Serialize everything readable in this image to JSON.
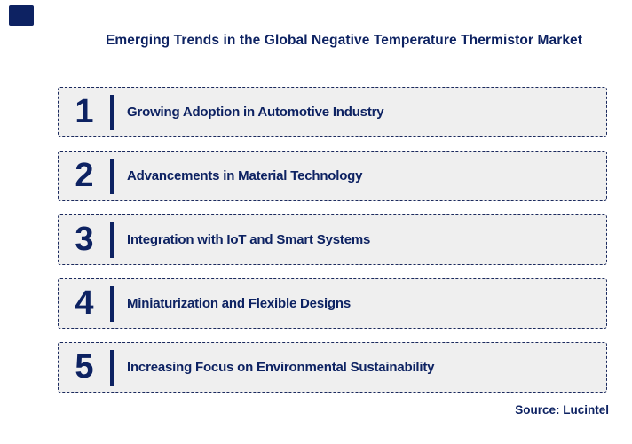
{
  "page": {
    "title": "Emerging Trends in the Global Negative Temperature Thermistor Market",
    "source": "Source: Lucintel"
  },
  "colors": {
    "navy": "#0d2262",
    "box_fill": "#efefef",
    "box_border": "#1b2a5e",
    "background": "#ffffff"
  },
  "logo": {
    "name": "lucintel-corner-mark"
  },
  "trends": [
    {
      "number": "1",
      "label": "Growing Adoption in Automotive Industry"
    },
    {
      "number": "2",
      "label": "Advancements in Material Technology"
    },
    {
      "number": "3",
      "label": "Integration with IoT and Smart Systems"
    },
    {
      "number": "4",
      "label": "Miniaturization and Flexible Designs"
    },
    {
      "number": "5",
      "label": "Increasing Focus on Environmental Sustainability"
    }
  ]
}
